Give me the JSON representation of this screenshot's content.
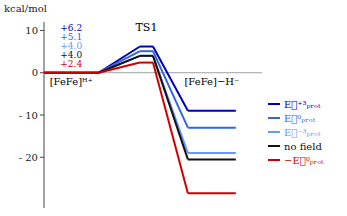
{
  "chart_data": {
    "type": "line",
    "ylabel": "kcal/mol",
    "categories": [
      "[FeFe]ᴴ⁺",
      "TS1",
      "[FeFe]−H⁻"
    ],
    "series": [
      {
        "name": "E⃗⁺³ₚᵣₒₜ",
        "color": "#0000bb",
        "values": [
          0,
          6.2,
          -9.0
        ],
        "value_labels": [
          null,
          "+6.2",
          null
        ]
      },
      {
        "name": "E⃗⁰ₚᵣₒₜ",
        "color": "#3366dd",
        "values": [
          0,
          5.1,
          -13.0
        ],
        "value_labels": [
          null,
          "+5.1",
          null
        ]
      },
      {
        "name": "E⃗⁻³ₚᵣₒₜ",
        "color": "#6699ff",
        "values": [
          0,
          4.0,
          -19.0
        ],
        "value_labels": [
          null,
          "+4.0",
          null
        ]
      },
      {
        "name": "no field",
        "color": "#111111",
        "values": [
          0,
          4.0,
          -20.5
        ],
        "value_labels": [
          null,
          "+4.0",
          null
        ]
      },
      {
        "name": "−E⃗⁰ₚᵣₒₜ",
        "color": "#cc0000",
        "values": [
          0,
          2.4,
          -28.5
        ],
        "value_labels": [
          null,
          "+2.4",
          null
        ]
      }
    ],
    "ylim": [
      -32,
      12
    ],
    "yticks": [
      10,
      0,
      {
        "value": -10,
        "label": "- 10"
      },
      {
        "value": -20,
        "label": "- 20"
      }
    ],
    "legend": "right"
  }
}
